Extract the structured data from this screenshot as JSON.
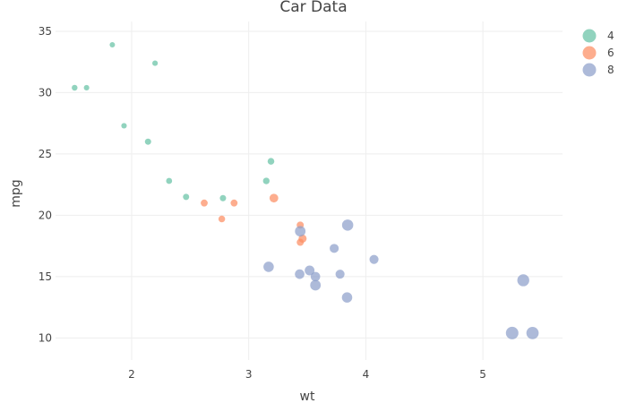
{
  "chart_data": {
    "type": "scatter",
    "title": "Car Data",
    "xlabel": "wt",
    "ylabel": "mpg",
    "xlim": [
      1.35,
      5.68
    ],
    "ylim": [
      8.2,
      35.8
    ],
    "xticks": [
      2,
      3,
      4,
      5
    ],
    "yticks": [
      10,
      15,
      20,
      25,
      30,
      35
    ],
    "grid": true,
    "legend_position": "top-right",
    "colors": {
      "4": "#66c2a5",
      "6": "#fc8d62",
      "8": "#8da0cb"
    },
    "series": [
      {
        "name": "4",
        "points": [
          {
            "x": 2.32,
            "y": 22.8,
            "disp": 108
          },
          {
            "x": 3.19,
            "y": 24.4,
            "disp": 146.7
          },
          {
            "x": 3.15,
            "y": 22.8,
            "disp": 140.8
          },
          {
            "x": 2.2,
            "y": 32.4,
            "disp": 78.7
          },
          {
            "x": 1.615,
            "y": 30.4,
            "disp": 75.7
          },
          {
            "x": 1.835,
            "y": 33.9,
            "disp": 71.1
          },
          {
            "x": 2.465,
            "y": 21.5,
            "disp": 120.1
          },
          {
            "x": 1.935,
            "y": 27.3,
            "disp": 79
          },
          {
            "x": 2.14,
            "y": 26.0,
            "disp": 120.3
          },
          {
            "x": 1.513,
            "y": 30.4,
            "disp": 95.1
          },
          {
            "x": 2.78,
            "y": 21.4,
            "disp": 121
          }
        ]
      },
      {
        "name": "6",
        "points": [
          {
            "x": 2.62,
            "y": 21.0,
            "disp": 160
          },
          {
            "x": 2.875,
            "y": 21.0,
            "disp": 160
          },
          {
            "x": 3.215,
            "y": 21.4,
            "disp": 258
          },
          {
            "x": 3.46,
            "y": 18.1,
            "disp": 225
          },
          {
            "x": 3.44,
            "y": 19.2,
            "disp": 167.6
          },
          {
            "x": 3.44,
            "y": 17.8,
            "disp": 167.6
          },
          {
            "x": 2.77,
            "y": 19.7,
            "disp": 145
          }
        ]
      },
      {
        "name": "8",
        "points": [
          {
            "x": 3.44,
            "y": 18.7,
            "disp": 360
          },
          {
            "x": 3.57,
            "y": 14.3,
            "disp": 360
          },
          {
            "x": 4.07,
            "y": 16.4,
            "disp": 275.8
          },
          {
            "x": 3.73,
            "y": 17.3,
            "disp": 275.8
          },
          {
            "x": 3.78,
            "y": 15.2,
            "disp": 275.8
          },
          {
            "x": 5.25,
            "y": 10.4,
            "disp": 472
          },
          {
            "x": 5.424,
            "y": 10.4,
            "disp": 460
          },
          {
            "x": 5.345,
            "y": 14.7,
            "disp": 440
          },
          {
            "x": 3.52,
            "y": 15.5,
            "disp": 318
          },
          {
            "x": 3.435,
            "y": 15.2,
            "disp": 304
          },
          {
            "x": 3.84,
            "y": 13.3,
            "disp": 350
          },
          {
            "x": 3.845,
            "y": 19.2,
            "disp": 400
          },
          {
            "x": 3.17,
            "y": 15.8,
            "disp": 351
          },
          {
            "x": 3.57,
            "y": 15.0,
            "disp": 301
          }
        ]
      }
    ]
  }
}
